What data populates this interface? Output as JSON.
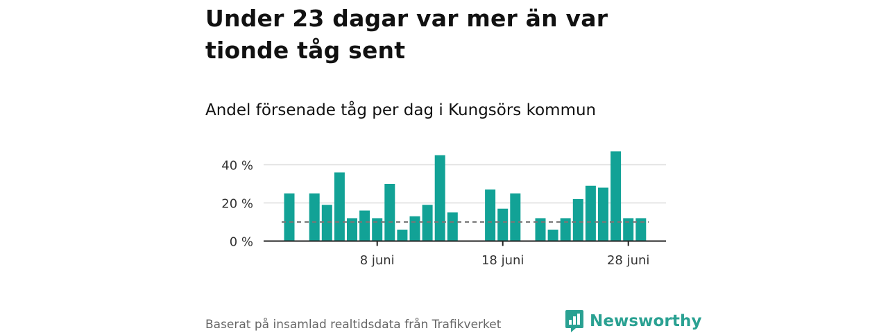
{
  "title": "Under 23 dagar var mer än var tionde tåg sent",
  "subtitle": "Andel försenade tåg per dag i Kungsörs kommun",
  "source": "Baserat på insamlad realtidsdata från Trafikverket",
  "brand": {
    "name": "Newsworthy",
    "color": "#2aa192",
    "icon": "newsworthy-logo-icon"
  },
  "colors": {
    "bar": "#12a296",
    "grid": "#dddddd",
    "axis": "#222222",
    "reference_line": "#777777"
  },
  "chart_data": {
    "type": "bar",
    "x": [
      "1 juni",
      "2 juni",
      "3 juni",
      "4 juni",
      "5 juni",
      "6 juni",
      "7 juni",
      "8 juni",
      "9 juni",
      "10 juni",
      "11 juni",
      "12 juni",
      "13 juni",
      "14 juni",
      "15 juni",
      "16 juni",
      "17 juni",
      "18 juni",
      "19 juni",
      "20 juni",
      "21 juni",
      "22 juni",
      "23 juni",
      "24 juni",
      "25 juni",
      "26 juni",
      "27 juni",
      "28 juni",
      "29 juni",
      "30 juni"
    ],
    "values": [
      25,
      null,
      25,
      19,
      36,
      12,
      16,
      12,
      30,
      6,
      13,
      19,
      45,
      15,
      null,
      null,
      27,
      17,
      25,
      null,
      12,
      6,
      12,
      22,
      29,
      28,
      47,
      12,
      12,
      null
    ],
    "unit": "%",
    "ylim": [
      0,
      50
    ],
    "yticks": [
      0,
      20,
      40
    ],
    "ytick_labels": [
      "0 %",
      "20 %",
      "40 %"
    ],
    "xtick_labels": [
      "8 juni",
      "18 juni",
      "28 juni"
    ],
    "reference_line": 10,
    "grid": true,
    "legend": "none"
  }
}
